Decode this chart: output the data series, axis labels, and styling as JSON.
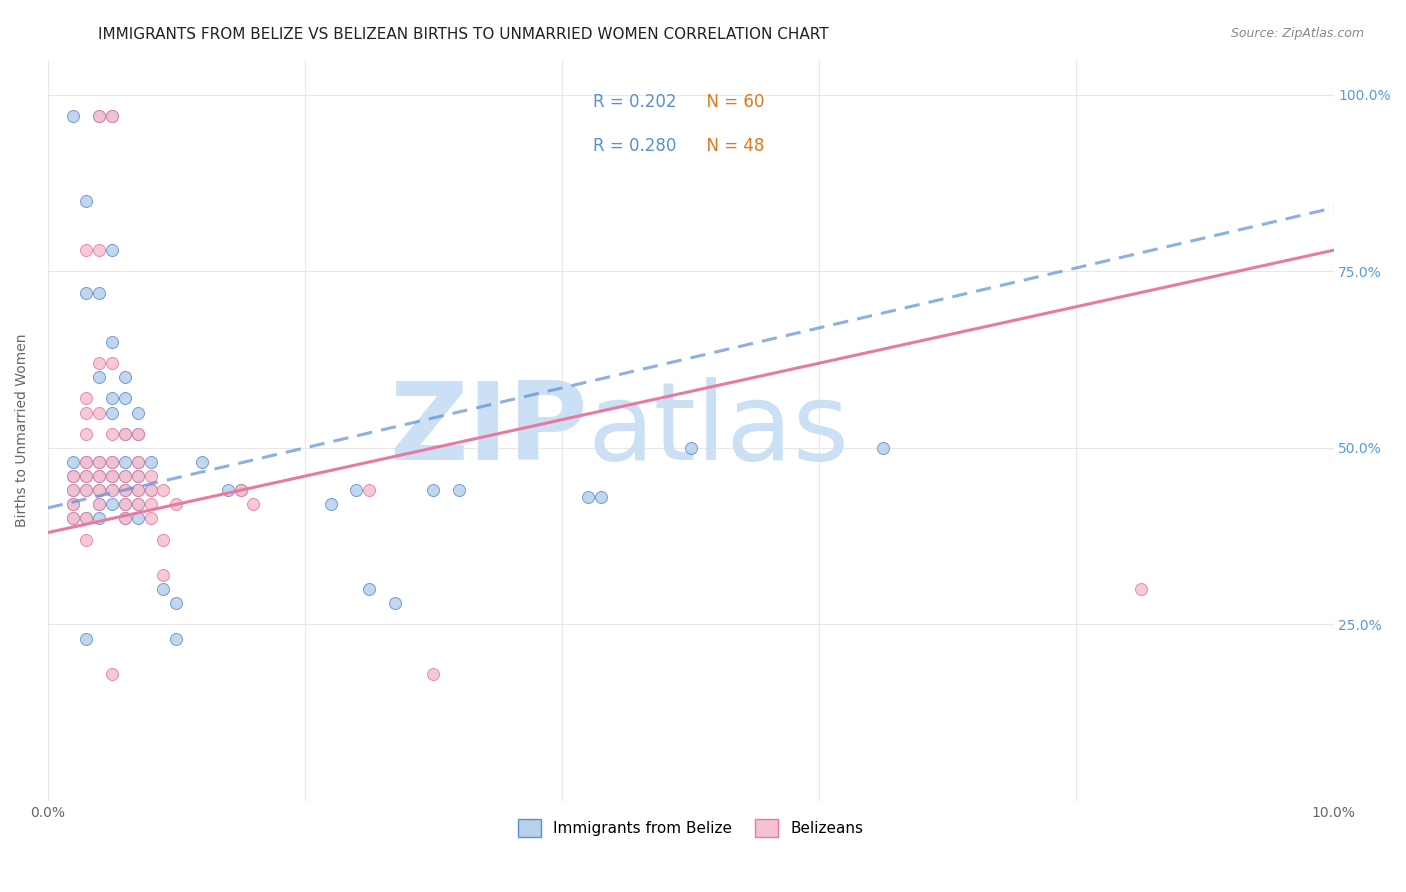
{
  "title": "IMMIGRANTS FROM BELIZE VS BELIZEAN BIRTHS TO UNMARRIED WOMEN CORRELATION CHART",
  "source": "Source: ZipAtlas.com",
  "ylabel": "Births to Unmarried Women",
  "xlim": [
    0.0,
    0.1
  ],
  "ylim": [
    0.0,
    1.05
  ],
  "ytick_labels": [
    "",
    "25.0%",
    "50.0%",
    "75.0%",
    "100.0%"
  ],
  "ytick_values": [
    0.0,
    0.25,
    0.5,
    0.75,
    1.0
  ],
  "xtick_values": [
    0.0,
    0.02,
    0.04,
    0.06,
    0.08,
    0.1
  ],
  "xtick_labels": [
    "0.0%",
    "",
    "",
    "",
    "",
    "10.0%"
  ],
  "watermark_zip": "ZIP",
  "watermark_atlas": "atlas",
  "watermark_color": "#cce0f5",
  "blue_scatter": [
    [
      0.002,
      0.97
    ],
    [
      0.004,
      0.97
    ],
    [
      0.005,
      0.97
    ],
    [
      0.003,
      0.85
    ],
    [
      0.005,
      0.78
    ],
    [
      0.003,
      0.72
    ],
    [
      0.004,
      0.72
    ],
    [
      0.005,
      0.65
    ],
    [
      0.004,
      0.6
    ],
    [
      0.006,
      0.6
    ],
    [
      0.005,
      0.57
    ],
    [
      0.006,
      0.57
    ],
    [
      0.005,
      0.55
    ],
    [
      0.007,
      0.55
    ],
    [
      0.006,
      0.52
    ],
    [
      0.007,
      0.52
    ],
    [
      0.002,
      0.48
    ],
    [
      0.003,
      0.48
    ],
    [
      0.004,
      0.48
    ],
    [
      0.005,
      0.48
    ],
    [
      0.006,
      0.48
    ],
    [
      0.007,
      0.48
    ],
    [
      0.008,
      0.48
    ],
    [
      0.012,
      0.48
    ],
    [
      0.002,
      0.46
    ],
    [
      0.003,
      0.46
    ],
    [
      0.004,
      0.46
    ],
    [
      0.005,
      0.46
    ],
    [
      0.006,
      0.46
    ],
    [
      0.007,
      0.46
    ],
    [
      0.002,
      0.44
    ],
    [
      0.003,
      0.44
    ],
    [
      0.004,
      0.44
    ],
    [
      0.005,
      0.44
    ],
    [
      0.006,
      0.44
    ],
    [
      0.007,
      0.44
    ],
    [
      0.008,
      0.44
    ],
    [
      0.014,
      0.44
    ],
    [
      0.015,
      0.44
    ],
    [
      0.024,
      0.44
    ],
    [
      0.03,
      0.44
    ],
    [
      0.032,
      0.44
    ],
    [
      0.002,
      0.42
    ],
    [
      0.004,
      0.42
    ],
    [
      0.005,
      0.42
    ],
    [
      0.006,
      0.42
    ],
    [
      0.007,
      0.42
    ],
    [
      0.022,
      0.42
    ],
    [
      0.002,
      0.4
    ],
    [
      0.003,
      0.4
    ],
    [
      0.004,
      0.4
    ],
    [
      0.006,
      0.4
    ],
    [
      0.007,
      0.4
    ],
    [
      0.042,
      0.43
    ],
    [
      0.043,
      0.43
    ],
    [
      0.009,
      0.3
    ],
    [
      0.025,
      0.3
    ],
    [
      0.01,
      0.28
    ],
    [
      0.027,
      0.28
    ],
    [
      0.003,
      0.23
    ],
    [
      0.01,
      0.23
    ],
    [
      0.065,
      0.5
    ],
    [
      0.05,
      0.5
    ]
  ],
  "pink_scatter": [
    [
      0.004,
      0.97
    ],
    [
      0.005,
      0.97
    ],
    [
      0.003,
      0.78
    ],
    [
      0.004,
      0.78
    ],
    [
      0.004,
      0.62
    ],
    [
      0.005,
      0.62
    ],
    [
      0.003,
      0.57
    ],
    [
      0.003,
      0.55
    ],
    [
      0.004,
      0.55
    ],
    [
      0.003,
      0.52
    ],
    [
      0.005,
      0.52
    ],
    [
      0.006,
      0.52
    ],
    [
      0.007,
      0.52
    ],
    [
      0.003,
      0.48
    ],
    [
      0.004,
      0.48
    ],
    [
      0.005,
      0.48
    ],
    [
      0.007,
      0.48
    ],
    [
      0.002,
      0.46
    ],
    [
      0.003,
      0.46
    ],
    [
      0.004,
      0.46
    ],
    [
      0.005,
      0.46
    ],
    [
      0.006,
      0.46
    ],
    [
      0.007,
      0.46
    ],
    [
      0.008,
      0.46
    ],
    [
      0.002,
      0.44
    ],
    [
      0.003,
      0.44
    ],
    [
      0.004,
      0.44
    ],
    [
      0.005,
      0.44
    ],
    [
      0.006,
      0.44
    ],
    [
      0.007,
      0.44
    ],
    [
      0.008,
      0.44
    ],
    [
      0.009,
      0.44
    ],
    [
      0.015,
      0.44
    ],
    [
      0.025,
      0.44
    ],
    [
      0.002,
      0.42
    ],
    [
      0.004,
      0.42
    ],
    [
      0.006,
      0.42
    ],
    [
      0.007,
      0.42
    ],
    [
      0.008,
      0.42
    ],
    [
      0.01,
      0.42
    ],
    [
      0.016,
      0.42
    ],
    [
      0.002,
      0.4
    ],
    [
      0.003,
      0.4
    ],
    [
      0.006,
      0.4
    ],
    [
      0.008,
      0.4
    ],
    [
      0.003,
      0.37
    ],
    [
      0.009,
      0.37
    ],
    [
      0.009,
      0.32
    ],
    [
      0.005,
      0.18
    ],
    [
      0.03,
      0.18
    ],
    [
      0.085,
      0.3
    ]
  ],
  "blue_line_x": [
    0.0,
    0.1
  ],
  "blue_line_y": [
    0.415,
    0.84
  ],
  "pink_line_x": [
    0.0,
    0.1
  ],
  "pink_line_y": [
    0.38,
    0.78
  ],
  "blue_color": "#b8d0ea",
  "pink_color": "#f5c0cf",
  "blue_line_color": "#5b8fd4",
  "pink_line_color": "#e87aa0",
  "grid_color": "#e8e8e8",
  "background_color": "#ffffff",
  "right_axis_color": "#5b9bd5",
  "title_fontsize": 11,
  "axis_label_fontsize": 10,
  "tick_fontsize": 10,
  "legend_r_color": "#5b8fd4",
  "legend_n_color": "#e07820"
}
